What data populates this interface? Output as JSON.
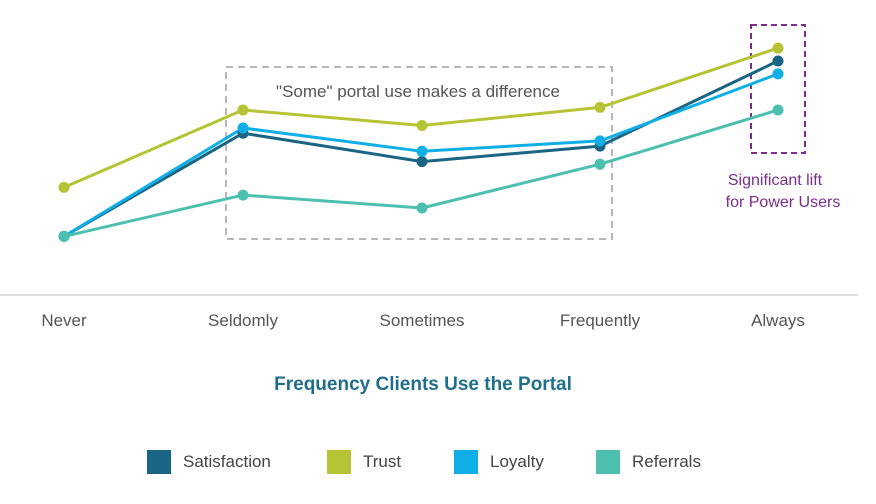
{
  "chart_data": {
    "type": "line",
    "title": "",
    "xlabel": "Frequency Clients Use the Portal",
    "ylabel": "",
    "ylim": [
      0,
      100
    ],
    "categories": [
      "Never",
      "Seldomly",
      "Sometimes",
      "Frequently",
      "Always"
    ],
    "series": [
      {
        "name": "Satisfaction",
        "color": "#1a6584",
        "values": [
          20,
          60,
          49,
          55,
          88
        ]
      },
      {
        "name": "Trust",
        "color": "#b5c334",
        "values": [
          39,
          69,
          63,
          70,
          93
        ]
      },
      {
        "name": "Loyalty",
        "color": "#0faee6",
        "values": [
          20,
          62,
          53,
          57,
          83
        ]
      },
      {
        "name": "Referrals",
        "color": "#4cbfae",
        "values": [
          20,
          36,
          31,
          48,
          69
        ]
      }
    ],
    "grid": false,
    "legend": "bottom",
    "annotations": [
      {
        "text": "\"Some\" portal use makes a difference",
        "color": "#555555"
      },
      {
        "text": [
          "Significant lift",
          "for Power Users"
        ],
        "color": "#7b2d8b"
      }
    ]
  }
}
